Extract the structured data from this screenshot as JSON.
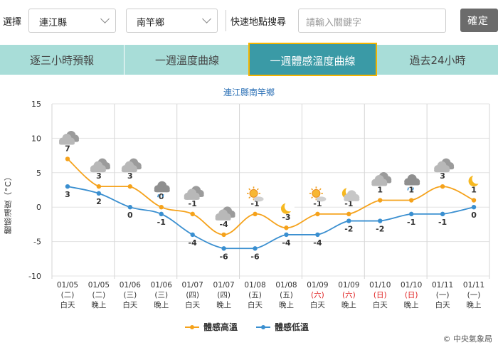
{
  "toolbar": {
    "select_label": "選擇",
    "county_value": "連江縣",
    "town_value": "南竿鄉",
    "quick_search_label": "快速地點搜尋",
    "search_placeholder": "請輸入關鍵字",
    "confirm_label": "確定"
  },
  "tabs": [
    {
      "label": "逐三小時預報",
      "active": false
    },
    {
      "label": "一週溫度曲線",
      "active": false
    },
    {
      "label": "一週體感溫度曲線",
      "active": true
    },
    {
      "label": "過去24小時",
      "active": false
    }
  ],
  "colors": {
    "high_series": "#f5a21b",
    "low_series": "#3a8fd0",
    "tab_bg": "#a8ddd8",
    "tab_active": "#3a9aa6",
    "tab_active_border": "#f4b400",
    "weekend": "#e02020"
  },
  "credit": "© 中央氣象局",
  "chart_data": {
    "type": "line",
    "title": "連江縣南竿鄉",
    "ylabel": "體感溫度（°C）",
    "ylim": [
      -10,
      15
    ],
    "yticks": [
      15,
      10,
      5,
      0,
      -5,
      -10
    ],
    "grid": true,
    "legend_position": "bottom-center",
    "categories": [
      {
        "date": "01/05",
        "weekday": "(二)",
        "period": "白天",
        "weekend": false,
        "icon": "cloudy-icon"
      },
      {
        "date": "01/05",
        "weekday": "(二)",
        "period": "晚上",
        "weekend": false,
        "icon": "cloudy-icon"
      },
      {
        "date": "01/06",
        "weekday": "(三)",
        "period": "白天",
        "weekend": false,
        "icon": "cloudy-icon"
      },
      {
        "date": "01/06",
        "weekday": "(三)",
        "period": "晚上",
        "weekend": false,
        "icon": "rain-cloud-icon"
      },
      {
        "date": "01/07",
        "weekday": "(四)",
        "period": "白天",
        "weekend": false,
        "icon": "cloudy-icon"
      },
      {
        "date": "01/07",
        "weekday": "(四)",
        "period": "晚上",
        "weekend": false,
        "icon": "cloudy-icon"
      },
      {
        "date": "01/08",
        "weekday": "(五)",
        "period": "白天",
        "weekend": false,
        "icon": "sun-cloud-icon"
      },
      {
        "date": "01/08",
        "weekday": "(五)",
        "period": "晚上",
        "weekend": false,
        "icon": "moon-icon"
      },
      {
        "date": "01/09",
        "weekday": "(六)",
        "period": "白天",
        "weekend": true,
        "icon": "sun-cloud-icon"
      },
      {
        "date": "01/09",
        "weekday": "(六)",
        "period": "晚上",
        "weekend": true,
        "icon": "moon-cloud-icon"
      },
      {
        "date": "01/10",
        "weekday": "(日)",
        "period": "白天",
        "weekend": true,
        "icon": "cloudy-icon"
      },
      {
        "date": "01/10",
        "weekday": "(日)",
        "period": "晚上",
        "weekend": true,
        "icon": "rain-cloud-icon"
      },
      {
        "date": "01/11",
        "weekday": "(一)",
        "period": "白天",
        "weekend": false,
        "icon": "cloudy-icon"
      },
      {
        "date": "01/11",
        "weekday": "(一)",
        "period": "晚上",
        "weekend": false,
        "icon": "moon-icon"
      }
    ],
    "series": [
      {
        "name": "體感高溫",
        "values": [
          7,
          3,
          3,
          0,
          -1,
          -4,
          -1,
          -3,
          -1,
          -1,
          1,
          1,
          3,
          1
        ]
      },
      {
        "name": "體感低溫",
        "values": [
          3,
          2,
          0,
          -1,
          -4,
          -6,
          -6,
          -4,
          -4,
          -2,
          -2,
          -1,
          -1,
          0
        ]
      }
    ]
  }
}
